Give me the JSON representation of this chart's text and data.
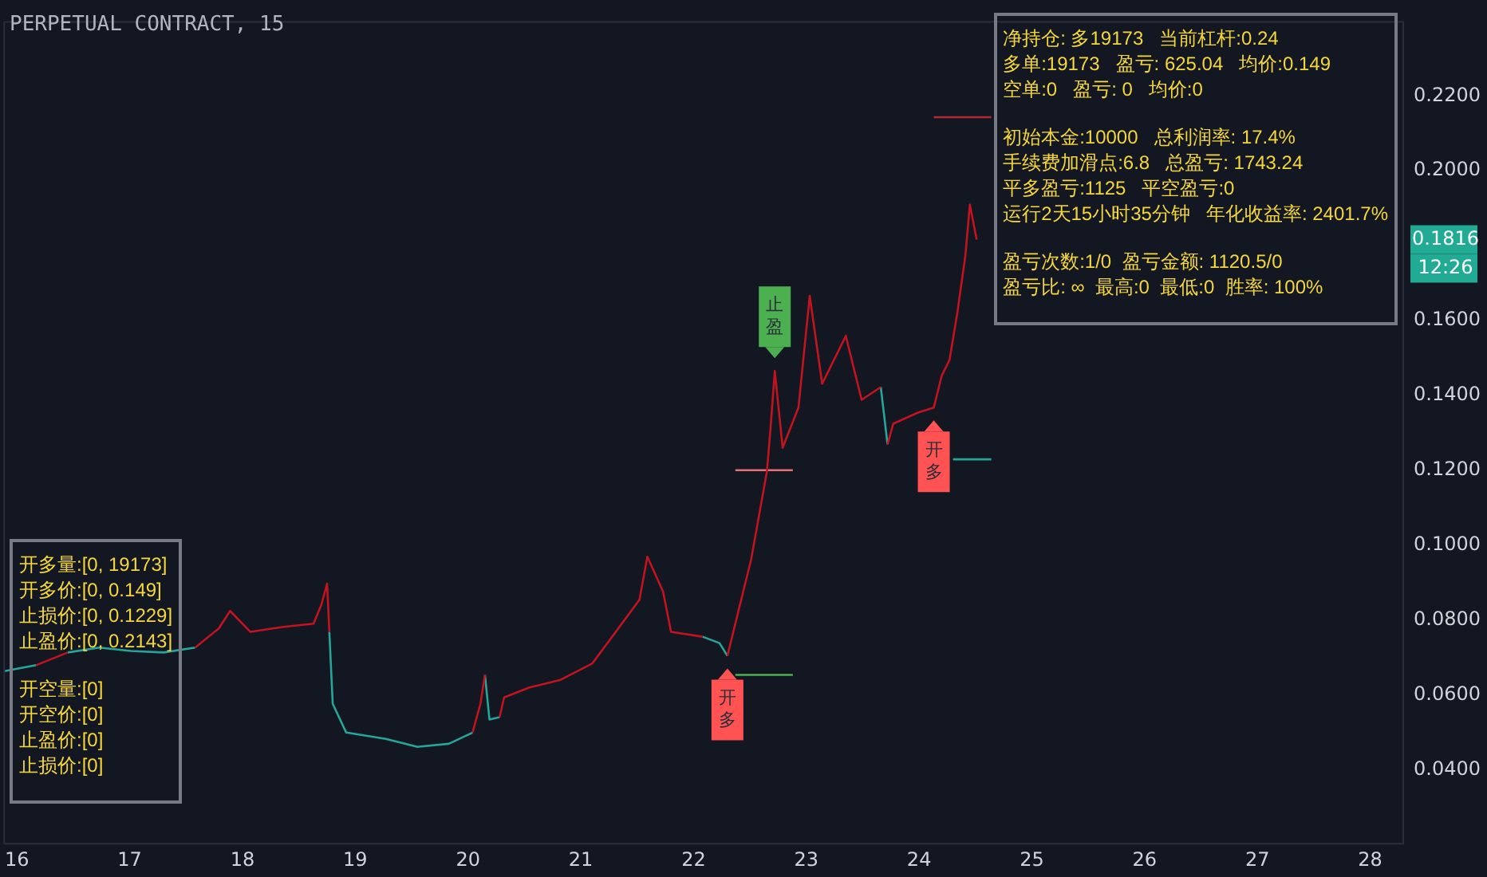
{
  "chart_data": [
    {
      "type": "line",
      "title": "PERPETUAL CONTRACT, 15",
      "xlim": [
        15.88,
        28.3
      ],
      "ylim": [
        0.02,
        0.24
      ],
      "xticks": [
        16,
        17,
        18,
        19,
        20,
        21,
        22,
        23,
        24,
        25,
        26,
        27,
        28
      ],
      "yticks": [
        {
          "value": 0.04,
          "label": "0.0400"
        },
        {
          "value": 0.06,
          "label": "0.0600"
        },
        {
          "value": 0.08,
          "label": "0.0800"
        },
        {
          "value": 0.1,
          "label": "0.1000"
        },
        {
          "value": 0.12,
          "label": "0.1200"
        },
        {
          "value": 0.14,
          "label": "0.1400"
        },
        {
          "value": 0.16,
          "label": "0.1600"
        },
        {
          "value": 0.2,
          "label": "0.2000"
        },
        {
          "value": 0.22,
          "label": "0.2200"
        }
      ],
      "grid": false,
      "legend": false,
      "marker": "none",
      "line_style": "solid",
      "series": [
        {
          "color": "#c2141f",
          "x": [
            16.17,
            16.45,
            16.5,
            17.58,
            17.79,
            17.89,
            18.07,
            18.35,
            18.63,
            18.7,
            18.75,
            18.77,
            18.9,
            20.04,
            20.11,
            20.15,
            20.17,
            20.28,
            20.32,
            20.54,
            20.82,
            21.1,
            21.31,
            21.52,
            21.59,
            21.73,
            21.8,
            22.08,
            22.2,
            22.3,
            22.37,
            22.51,
            22.65,
            22.68,
            22.72,
            22.79,
            22.93,
            23.03,
            23.14,
            23.35,
            23.49,
            23.66,
            23.7,
            23.72,
            23.77,
            23.99,
            24.13,
            24.2,
            24.27,
            24.34,
            24.41,
            24.45,
            24.51
          ],
          "values": [
            0.0679,
            0.0713,
            null,
            0.0726,
            0.0777,
            0.0824,
            0.0768,
            0.0781,
            0.079,
            0.0841,
            0.0897,
            0.0768,
            null,
            0.0499,
            0.0576,
            0.0653,
            null,
            0.054,
            0.0593,
            0.0619,
            0.064,
            0.0683,
            0.0768,
            0.0854,
            0.0969,
            0.0875,
            0.0768,
            0.0755,
            null,
            0.0704,
            0.079,
            0.0961,
            0.1196,
            0.1303,
            0.1465,
            0.126,
            0.1367,
            0.1666,
            0.1431,
            0.1559,
            0.1388,
            0.1422,
            null,
            0.1269,
            0.1324,
            0.1354,
            0.1367,
            0.1452,
            0.1495,
            0.1623,
            0.1773,
            0.191,
            0.1816
          ]
        },
        {
          "color": "#26a69a",
          "x": [
            15.89,
            16.17,
            16.3,
            16.45,
            16.73,
            17.01,
            17.3,
            17.58,
            17.7,
            18.77,
            18.8,
            18.92,
            19.27,
            19.55,
            19.83,
            20.04,
            20.1,
            20.15,
            20.19,
            20.28,
            21.0,
            22.08,
            22.23,
            22.3,
            23.0,
            23.66,
            23.72
          ],
          "values": [
            0.0663,
            0.0679,
            null,
            0.0713,
            0.0726,
            0.0717,
            0.0713,
            0.0726,
            null,
            0.0768,
            0.0576,
            0.0499,
            0.0482,
            0.0461,
            0.0469,
            0.0499,
            null,
            0.0653,
            0.0534,
            0.054,
            null,
            0.0755,
            0.0738,
            0.0704,
            null,
            0.1422,
            0.1269
          ]
        },
        {
          "x": [
            22.37,
            22.88
          ],
          "values": [
            0.12,
            0.12
          ],
          "color": "#e57373"
        },
        {
          "x": [
            22.37,
            22.88
          ],
          "values": [
            0.0653,
            0.0653
          ],
          "color": "#4caf50"
        },
        {
          "x": [
            24.13,
            24.64
          ],
          "values": [
            0.2143,
            0.2143
          ],
          "color": "#b22833"
        },
        {
          "x": [
            24.3,
            24.64
          ],
          "values": [
            0.1229,
            0.1229
          ],
          "color": "#26a69a"
        }
      ],
      "annotations": [
        {
          "text": "开多",
          "x": 22.3,
          "y": 0.0704
        },
        {
          "text": "止盈",
          "x": 22.72,
          "y": 0.1465
        },
        {
          "text": "开多",
          "x": 24.13,
          "y": 0.1367
        },
        "0.1816",
        "12:26"
      ]
    },
    {
      "type": "other",
      "annotations": [
        "净持仓: 多19173   当前杠杆:0.24",
        "多单:19173   盈亏: 625.04   均价:0.149",
        "空单:0   盈亏: 0   均价:0"
      ]
    },
    {
      "type": "other",
      "annotations": [
        "初始本金:10000   总利润率: 17.4%",
        "手续费加滑点:6.8   总盈亏: 1743.24",
        "平多盈亏:1125   平空盈亏:0",
        "运行2天15小时35分钟   年化收益率: 2401.7%"
      ]
    },
    {
      "type": "other",
      "annotations": [
        "盈亏次数:1/0  盈亏金额: 1120.5/0",
        "盈亏比: ∞  最高:0  最低:0  胜率: 100%"
      ]
    },
    {
      "type": "other",
      "annotations": [
        "开多量:[0, 19173]",
        "开多价:[0, 0.149]",
        "止损价:[0, 0.1229]",
        "止盈价:[0, 0.2143]"
      ]
    },
    {
      "type": "other",
      "annotations": [
        "开空量:[0]",
        "开空价:[0]",
        "止盈价:[0]",
        "止损价:[0]"
      ]
    }
  ]
}
